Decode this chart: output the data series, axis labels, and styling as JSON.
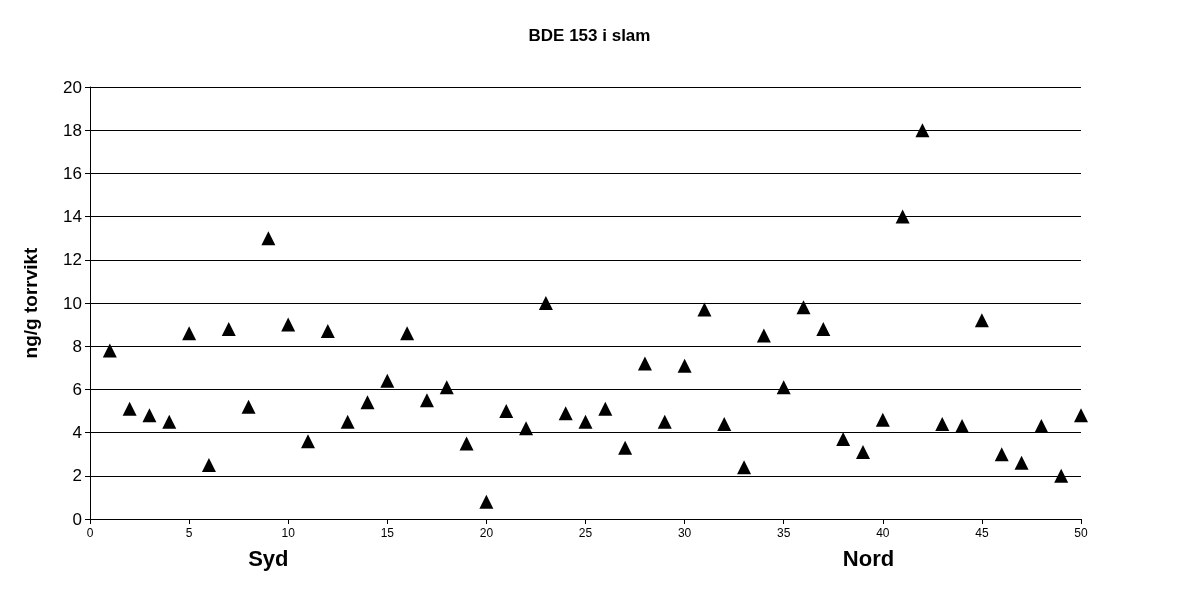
{
  "chart_data": {
    "type": "scatter",
    "title": "BDE 153 i slam",
    "ylabel": "ng/g torrvikt",
    "annotations": [
      "Syd",
      "Nord"
    ],
    "x": [
      1,
      2,
      3,
      4,
      5,
      6,
      7,
      8,
      9,
      10,
      11,
      12,
      13,
      14,
      15,
      16,
      17,
      18,
      19,
      20,
      21,
      22,
      23,
      24,
      25,
      26,
      27,
      28,
      29,
      30,
      31,
      32,
      33,
      34,
      35,
      36,
      37,
      38,
      39,
      40,
      41,
      42,
      43,
      44,
      45,
      46,
      47,
      48,
      49,
      50
    ],
    "values": [
      7.8,
      5.1,
      4.8,
      4.5,
      8.6,
      2.5,
      8.8,
      5.2,
      13,
      9,
      3.6,
      8.7,
      4.5,
      5.4,
      6.4,
      8.6,
      5.5,
      6.1,
      3.5,
      0.8,
      5.0,
      4.2,
      10,
      4.9,
      4.5,
      5.1,
      3.3,
      7.2,
      4.5,
      7.1,
      9.7,
      4.4,
      2.4,
      8.5,
      6.1,
      9.8,
      8.8,
      3.7,
      3.1,
      4.6,
      14,
      18,
      4.4,
      4.3,
      9.2,
      3.0,
      2.6,
      4.3,
      2.0,
      4.8
    ],
    "color": "#000000",
    "marker": "triangle",
    "xlim": [
      0,
      50
    ],
    "xticks": [
      0,
      5,
      10,
      15,
      20,
      25,
      30,
      35,
      40,
      45,
      50
    ],
    "ylim": [
      0,
      20
    ],
    "yticks": [
      0,
      2,
      4,
      6,
      8,
      10,
      12,
      14,
      16,
      18,
      20
    ],
    "grid": "y"
  }
}
